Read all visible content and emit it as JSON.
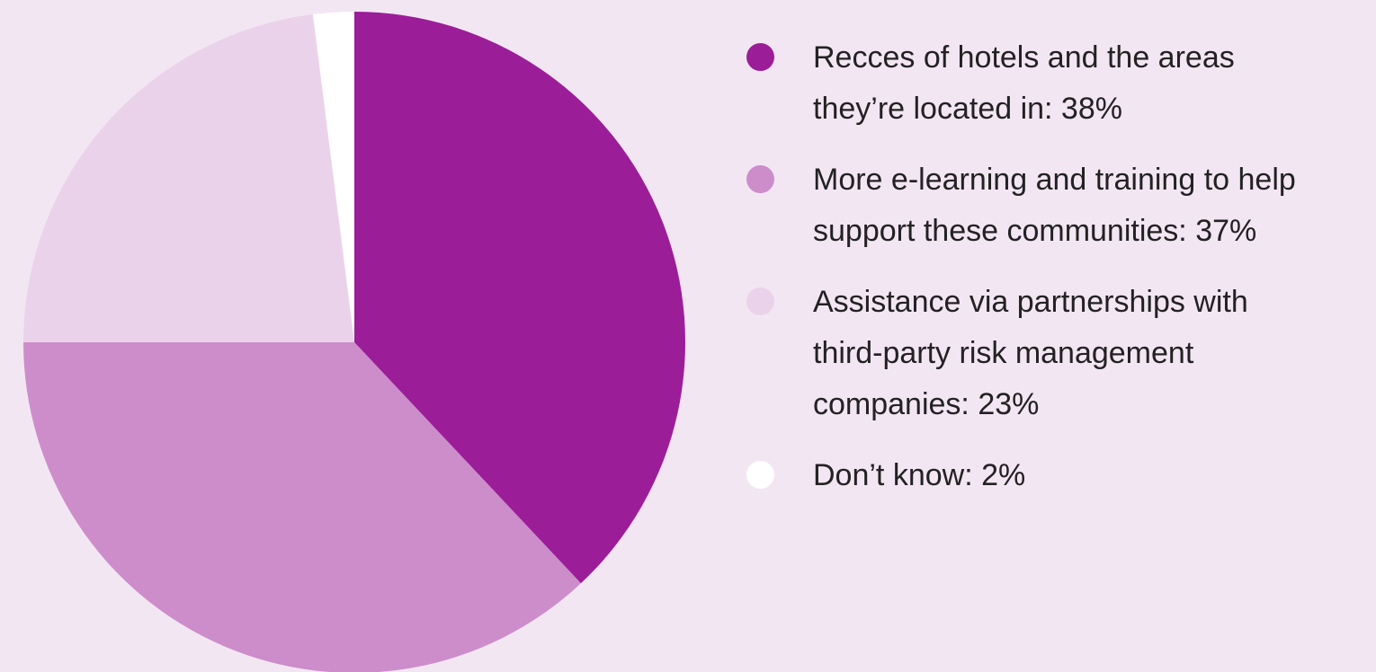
{
  "chart_data": {
    "type": "pie",
    "start_angle_deg": 0,
    "direction": "clockwise",
    "slices": [
      {
        "label": "Recces of hotels and the areas they’re located in: 38%",
        "value": 38,
        "color": "#9b1d98"
      },
      {
        "label": "More e-learning and training to help support these communities: 37%",
        "value": 37,
        "color": "#cc8dca"
      },
      {
        "label": "Assistance via partnerships with third-party risk management companies: 23%",
        "value": 23,
        "color": "#ead3ea"
      },
      {
        "label": "Don’t know: 2%",
        "value": 2,
        "color": "#ffffff"
      }
    ],
    "legend_placement": "right"
  },
  "legend": {
    "items": [
      {
        "lines": [
          "Recces of hotels and the areas",
          "they’re located in: 38%"
        ],
        "color": "#9b1d98"
      },
      {
        "lines": [
          "More e-learning and training to help",
          "support these communities: 37%"
        ],
        "color": "#cc8dca"
      },
      {
        "lines": [
          "Assistance via partnerships with",
          "third-party risk management",
          "companies: 23%"
        ],
        "color": "#ead3ea"
      },
      {
        "lines": [
          "Don’t know: 2%"
        ],
        "color": "#ffffff"
      }
    ]
  }
}
